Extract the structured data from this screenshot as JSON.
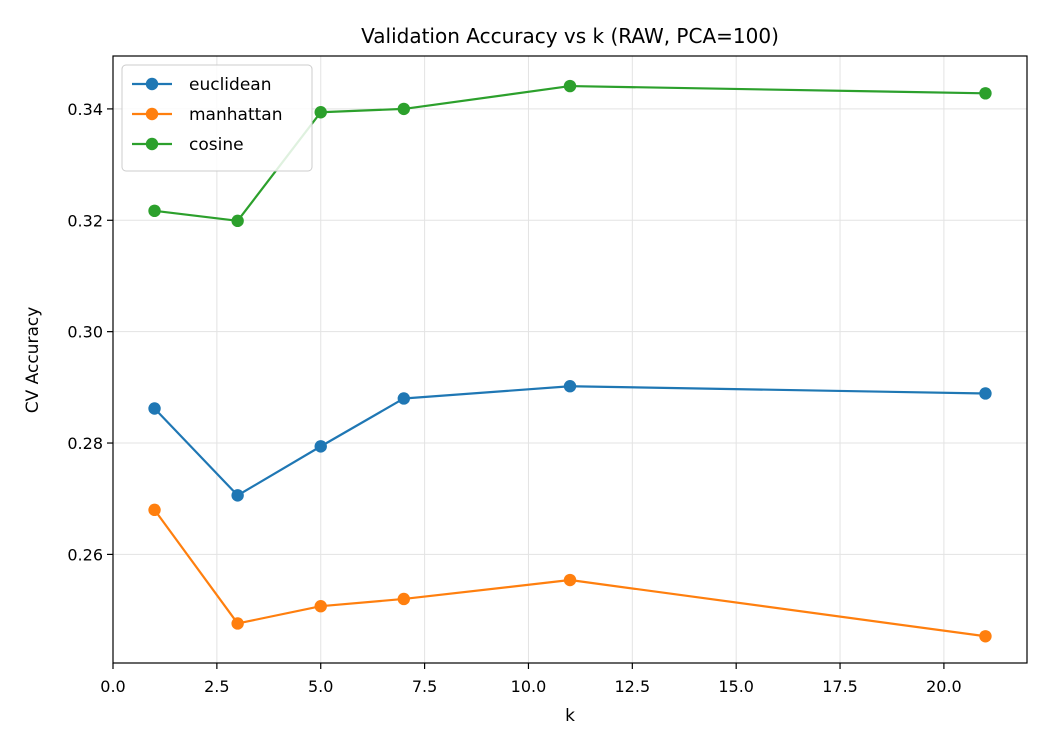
{
  "chart_data": {
    "type": "line",
    "title": "Validation Accuracy vs k (RAW, PCA=100)",
    "xlabel": "k",
    "ylabel": "CV Accuracy",
    "x": [
      1,
      3,
      5,
      7,
      11,
      21
    ],
    "xlim": [
      0,
      22
    ],
    "ylim": [
      0.2405,
      0.3495
    ],
    "xticks": [
      0.0,
      2.5,
      5.0,
      7.5,
      10.0,
      12.5,
      15.0,
      17.5,
      20.0
    ],
    "xtick_labels": [
      "0.0",
      "2.5",
      "5.0",
      "7.5",
      "10.0",
      "12.5",
      "15.0",
      "17.5",
      "20.0"
    ],
    "yticks": [
      0.26,
      0.28,
      0.3,
      0.32,
      0.34
    ],
    "ytick_labels": [
      "0.26",
      "0.28",
      "0.30",
      "0.32",
      "0.34"
    ],
    "grid": true,
    "legend_position": "top-left",
    "series": [
      {
        "name": "euclidean",
        "color": "#1f77b4",
        "values": [
          0.2862,
          0.2706,
          0.2794,
          0.288,
          0.2902,
          0.2889
        ]
      },
      {
        "name": "manhattan",
        "color": "#ff7f0e",
        "values": [
          0.268,
          0.2476,
          0.2507,
          0.252,
          0.2554,
          0.2453
        ]
      },
      {
        "name": "cosine",
        "color": "#2ca02c",
        "values": [
          0.3217,
          0.3199,
          0.3394,
          0.34,
          0.3441,
          0.3428
        ]
      }
    ]
  }
}
